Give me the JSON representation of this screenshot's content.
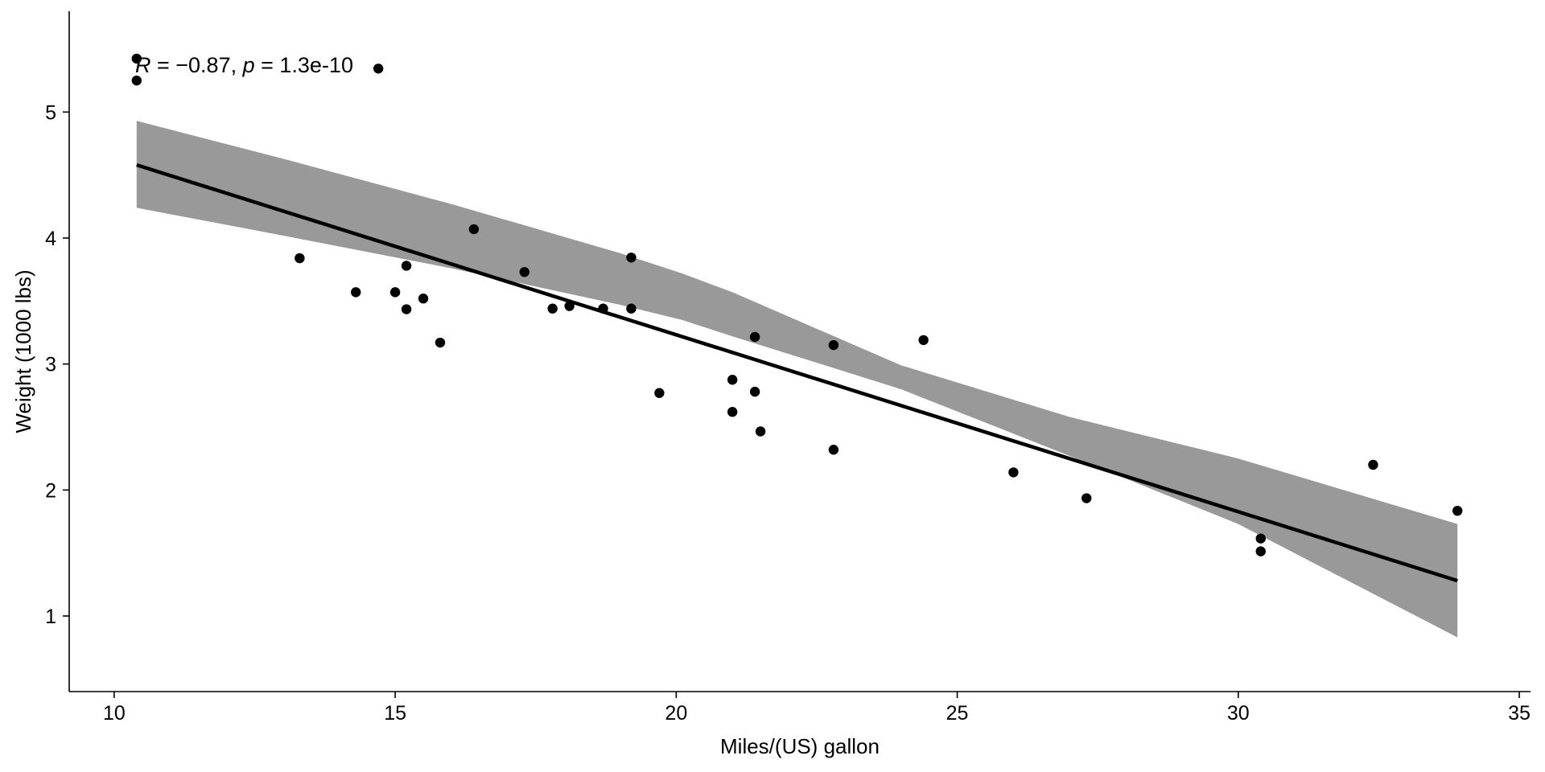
{
  "chart_data": {
    "type": "scatter",
    "title": "",
    "xlabel": "Miles/(US) gallon",
    "ylabel": "Weight (1000 lbs)",
    "xlim": [
      9.2,
      35.2
    ],
    "ylim": [
      0.4,
      5.8
    ],
    "x_ticks": [
      10,
      15,
      20,
      25,
      30,
      35
    ],
    "y_ticks": [
      1,
      2,
      3,
      4,
      5
    ],
    "x_tick_labels": [
      "10",
      "15",
      "20",
      "25",
      "30",
      "35"
    ],
    "y_tick_labels": [
      "1",
      "2",
      "3",
      "4",
      "5"
    ],
    "grid": false,
    "legend": "none",
    "annotation": {
      "r_symbol": "R",
      "r_value": " = −0.87, ",
      "p_symbol": "p",
      "p_value": " = 1.3e-10"
    },
    "points": [
      {
        "x": 10.4,
        "y": 5.424
      },
      {
        "x": 10.4,
        "y": 5.25
      },
      {
        "x": 14.7,
        "y": 5.345
      },
      {
        "x": 13.3,
        "y": 3.84
      },
      {
        "x": 14.3,
        "y": 3.57
      },
      {
        "x": 15.0,
        "y": 3.57
      },
      {
        "x": 15.2,
        "y": 3.78
      },
      {
        "x": 15.2,
        "y": 3.435
      },
      {
        "x": 15.5,
        "y": 3.52
      },
      {
        "x": 15.8,
        "y": 3.17
      },
      {
        "x": 16.4,
        "y": 4.07
      },
      {
        "x": 17.3,
        "y": 3.73
      },
      {
        "x": 17.8,
        "y": 3.44
      },
      {
        "x": 18.1,
        "y": 3.46
      },
      {
        "x": 18.7,
        "y": 3.44
      },
      {
        "x": 19.2,
        "y": 3.44
      },
      {
        "x": 19.2,
        "y": 3.845
      },
      {
        "x": 19.7,
        "y": 2.77
      },
      {
        "x": 21.0,
        "y": 2.62
      },
      {
        "x": 21.0,
        "y": 2.875
      },
      {
        "x": 21.4,
        "y": 3.215
      },
      {
        "x": 21.4,
        "y": 2.78
      },
      {
        "x": 21.5,
        "y": 2.465
      },
      {
        "x": 22.8,
        "y": 3.15
      },
      {
        "x": 22.8,
        "y": 2.32
      },
      {
        "x": 24.4,
        "y": 3.19
      },
      {
        "x": 26.0,
        "y": 2.14
      },
      {
        "x": 27.3,
        "y": 1.935
      },
      {
        "x": 30.4,
        "y": 1.615
      },
      {
        "x": 30.4,
        "y": 1.513
      },
      {
        "x": 32.4,
        "y": 2.2
      },
      {
        "x": 33.9,
        "y": 1.835
      }
    ],
    "fit_line": {
      "x": [
        10.4,
        33.9
      ],
      "y": [
        4.58,
        1.28
      ]
    },
    "confidence_band": {
      "x": [
        10.4,
        13,
        16,
        19,
        20.1,
        21,
        24,
        27,
        30,
        33.9
      ],
      "lower": [
        4.24,
        4.02,
        3.76,
        3.47,
        3.35,
        3.22,
        2.8,
        2.27,
        1.73,
        0.83
      ],
      "upper": [
        4.93,
        4.63,
        4.27,
        3.88,
        3.72,
        3.57,
        2.99,
        2.58,
        2.25,
        1.73
      ]
    },
    "colors": {
      "points": "#000000",
      "line": "#000000",
      "band": "#999999",
      "axes": "#000000"
    }
  }
}
